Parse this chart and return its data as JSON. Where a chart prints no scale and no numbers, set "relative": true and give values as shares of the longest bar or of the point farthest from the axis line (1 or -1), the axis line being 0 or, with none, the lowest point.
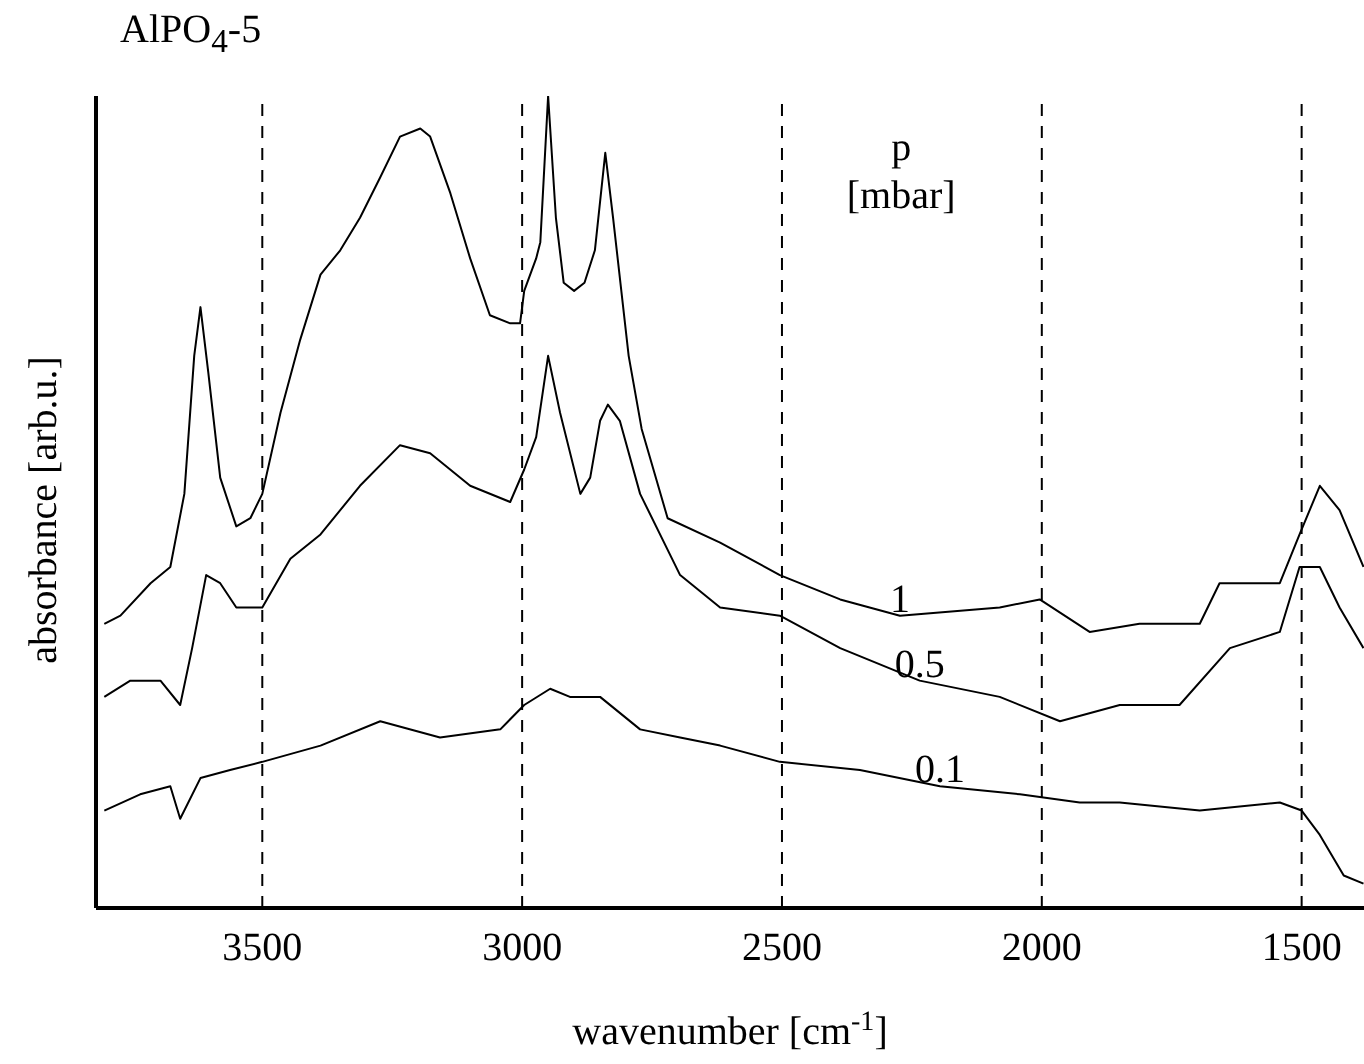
{
  "chart_data": {
    "type": "line",
    "title": "AlPO$_{4}$-5",
    "xlabel": "wavenumber [cm$^{-1}$]",
    "ylabel": "absorbance [arb.u.]",
    "legend_title": "p [mbar]",
    "relative": true,
    "xlim": [
      3820,
      1380
    ],
    "xticks": [
      3500,
      3000,
      2500,
      2000,
      1500
    ],
    "grid": false,
    "marker": "none",
    "line_style": "solid",
    "ref_lines": [
      {
        "axis": "x",
        "value": 3500,
        "line_style": "dashed",
        "color": "#000000"
      },
      {
        "axis": "x",
        "value": 3000,
        "line_style": "dashed",
        "color": "#000000"
      },
      {
        "axis": "x",
        "value": 2500,
        "line_style": "dashed",
        "color": "#000000"
      },
      {
        "axis": "x",
        "value": 2000,
        "line_style": "dashed",
        "color": "#000000"
      },
      {
        "axis": "x",
        "value": 1500,
        "line_style": "dashed",
        "color": "#000000"
      }
    ],
    "series": [
      {
        "name": "1",
        "color": "#000000",
        "x": [
          3804,
          3773,
          3715,
          3677,
          3650,
          3631,
          3619,
          3604,
          3581,
          3550,
          3523,
          3500,
          3465,
          3427,
          3388,
          3350,
          3312,
          3273,
          3235,
          3196,
          3177,
          3138,
          3100,
          3062,
          3023,
          3004,
          2996,
          2973,
          2965,
          2950,
          2935,
          2920,
          2900,
          2880,
          2860,
          2840,
          2825,
          2795,
          2770,
          2720,
          2619,
          2504,
          2388,
          2273,
          2081,
          2004,
          1908,
          1812,
          1696,
          1658,
          1542,
          1504,
          1465,
          1427,
          1381
        ],
        "values": [
          0.35,
          0.36,
          0.4,
          0.42,
          0.51,
          0.68,
          0.74,
          0.66,
          0.53,
          0.47,
          0.48,
          0.51,
          0.61,
          0.7,
          0.78,
          0.81,
          0.85,
          0.9,
          0.95,
          0.96,
          0.95,
          0.88,
          0.8,
          0.73,
          0.72,
          0.72,
          0.76,
          0.8,
          0.82,
          1.0,
          0.85,
          0.77,
          0.76,
          0.77,
          0.81,
          0.93,
          0.85,
          0.68,
          0.59,
          0.48,
          0.45,
          0.41,
          0.38,
          0.36,
          0.37,
          0.38,
          0.34,
          0.35,
          0.35,
          0.4,
          0.4,
          0.46,
          0.52,
          0.49,
          0.42
        ]
      },
      {
        "name": "0.5",
        "color": "#000000",
        "x": [
          3804,
          3754,
          3696,
          3658,
          3635,
          3608,
          3581,
          3550,
          3500,
          3446,
          3388,
          3312,
          3235,
          3177,
          3100,
          3023,
          2996,
          2973,
          2950,
          2927,
          2888,
          2869,
          2850,
          2835,
          2812,
          2773,
          2696,
          2619,
          2504,
          2388,
          2235,
          2081,
          1965,
          1850,
          1735,
          1638,
          1542,
          1504,
          1465,
          1427,
          1381
        ],
        "values": [
          0.26,
          0.28,
          0.28,
          0.25,
          0.32,
          0.41,
          0.4,
          0.37,
          0.37,
          0.43,
          0.46,
          0.52,
          0.57,
          0.56,
          0.52,
          0.5,
          0.54,
          0.58,
          0.68,
          0.61,
          0.51,
          0.53,
          0.6,
          0.62,
          0.6,
          0.51,
          0.41,
          0.37,
          0.36,
          0.32,
          0.28,
          0.26,
          0.23,
          0.25,
          0.25,
          0.32,
          0.34,
          0.42,
          0.42,
          0.37,
          0.32
        ]
      },
      {
        "name": "0.1",
        "color": "#000000",
        "x": [
          3804,
          3735,
          3677,
          3658,
          3619,
          3562,
          3500,
          3388,
          3273,
          3158,
          3042,
          2996,
          2946,
          2908,
          2850,
          2773,
          2696,
          2619,
          2504,
          2350,
          2196,
          2042,
          1927,
          1850,
          1696,
          1542,
          1500,
          1465,
          1419,
          1381
        ],
        "values": [
          0.12,
          0.14,
          0.15,
          0.11,
          0.16,
          0.17,
          0.18,
          0.2,
          0.23,
          0.21,
          0.22,
          0.25,
          0.27,
          0.26,
          0.26,
          0.22,
          0.21,
          0.2,
          0.18,
          0.17,
          0.15,
          0.14,
          0.13,
          0.13,
          0.12,
          0.13,
          0.12,
          0.09,
          0.04,
          0.03
        ]
      }
    ]
  }
}
